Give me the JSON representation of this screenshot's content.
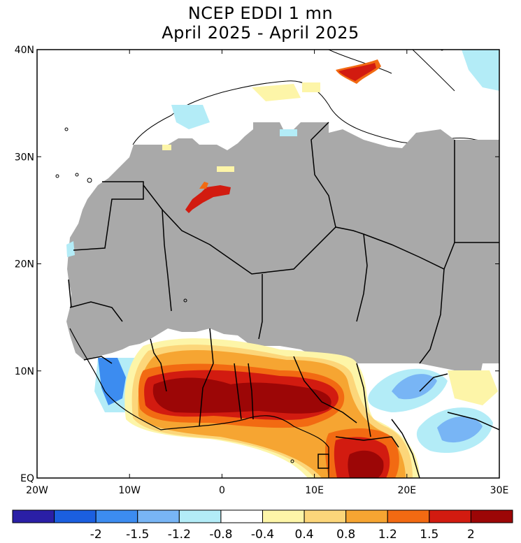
{
  "title": {
    "line1": "NCEP EDDI 1 mn",
    "line2": "April 2025 - April 2025"
  },
  "map": {
    "lon_range": [
      -20,
      30
    ],
    "lat_range": [
      0,
      40
    ],
    "lat_ticks": [
      {
        "value": 40,
        "label": "40N"
      },
      {
        "value": 30,
        "label": "30N"
      },
      {
        "value": 20,
        "label": "20N"
      },
      {
        "value": 10,
        "label": "10N"
      },
      {
        "value": 0,
        "label": "EQ"
      }
    ],
    "lon_ticks": [
      {
        "value": -20,
        "label": "20W"
      },
      {
        "value": -10,
        "label": "10W"
      },
      {
        "value": 0,
        "label": "0"
      },
      {
        "value": 10,
        "label": "10E"
      },
      {
        "value": 20,
        "label": "20E"
      },
      {
        "value": 30,
        "label": "30E"
      }
    ],
    "masked_color": "#a9a9a9",
    "land_color": "#ffffff"
  },
  "colorbar": {
    "colors": [
      "#2a1fa6",
      "#1b5fe0",
      "#3c8cf0",
      "#78b5f5",
      "#b3ecf7",
      "#ffffff",
      "#fdf5a8",
      "#fcd67a",
      "#f6a532",
      "#f26a12",
      "#d21b10",
      "#9c0606"
    ],
    "labels": [
      "-2",
      "-1.5",
      "-1.2",
      "-0.8",
      "-0.4",
      "0.4",
      "0.8",
      "1.2",
      "1.5",
      "2"
    ]
  }
}
